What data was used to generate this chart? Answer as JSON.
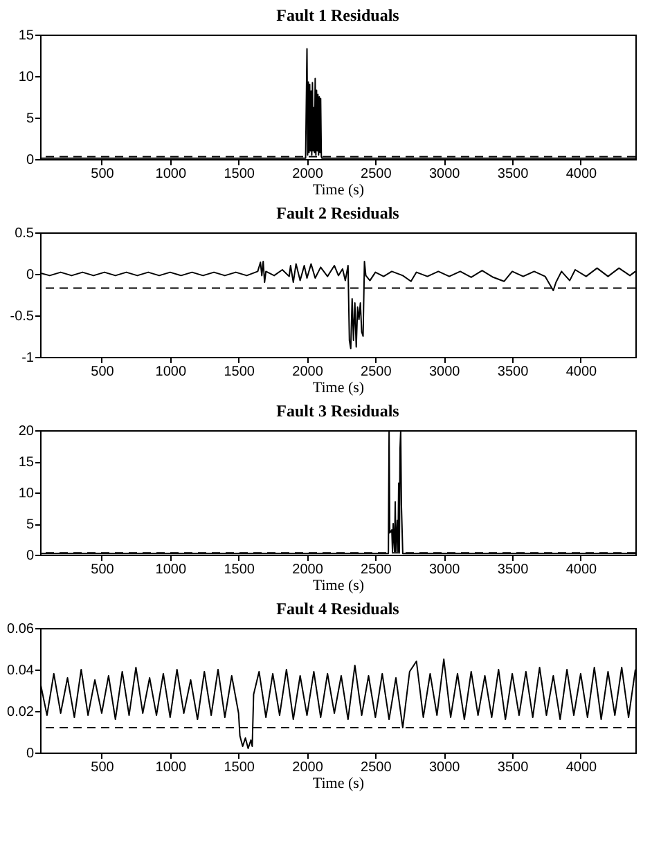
{
  "chart_data": [
    {
      "type": "line",
      "title": "Fault 1 Residuals",
      "xlabel": "Time (s)",
      "xlim": [
        50,
        4400
      ],
      "xticks": [
        500,
        1000,
        1500,
        2000,
        2500,
        3000,
        3500,
        4000
      ],
      "ylim": [
        0,
        15
      ],
      "yticks": [
        0,
        5,
        10,
        15
      ],
      "grid": false,
      "series": [
        {
          "color": "#000000",
          "x": [
            50,
            1000,
            1990,
            2000,
            2005,
            2010,
            2015,
            2020,
            2025,
            2030,
            2035,
            2040,
            2045,
            2050,
            2055,
            2060,
            2065,
            2070,
            2075,
            2080,
            2085,
            2090,
            2095,
            2100,
            2105,
            2110,
            3000,
            4400
          ],
          "values": [
            0.1,
            0.1,
            0.1,
            13.3,
            0.5,
            9.3,
            0.8,
            9.0,
            1,
            8.2,
            0.5,
            9.2,
            1,
            6.2,
            0.8,
            9.7,
            0.5,
            8.3,
            1,
            7.8,
            0.5,
            7.5,
            0.8,
            7.3,
            0.3,
            0.1,
            0.1,
            0.1
          ]
        }
      ],
      "ref_lines": [
        {
          "axis": "y",
          "value": 0.3,
          "color": "#000000",
          "line_style": "dashed"
        }
      ]
    },
    {
      "type": "line",
      "title": "Fault 2 Residuals",
      "xlabel": "Time (s)",
      "xlim": [
        50,
        4400
      ],
      "xticks": [
        500,
        1000,
        1500,
        2000,
        2500,
        3000,
        3500,
        4000
      ],
      "ylim": [
        -1,
        0.5
      ],
      "yticks": [
        -1,
        -0.5,
        0,
        0.5
      ],
      "grid": false,
      "series": [
        {
          "color": "#000000",
          "x": [
            50,
            120,
            200,
            280,
            360,
            440,
            520,
            600,
            680,
            760,
            840,
            920,
            1000,
            1080,
            1160,
            1240,
            1320,
            1400,
            1480,
            1560,
            1640,
            1660,
            1670,
            1680,
            1690,
            1700,
            1760,
            1820,
            1870,
            1880,
            1900,
            1920,
            1950,
            1980,
            2000,
            2030,
            2060,
            2100,
            2150,
            2200,
            2230,
            2260,
            2280,
            2300,
            2310,
            2320,
            2330,
            2340,
            2350,
            2360,
            2370,
            2380,
            2390,
            2400,
            2410,
            2420,
            2430,
            2460,
            2500,
            2560,
            2620,
            2700,
            2760,
            2800,
            2880,
            2960,
            3040,
            3120,
            3200,
            3280,
            3360,
            3440,
            3500,
            3580,
            3660,
            3740,
            3800,
            3820,
            3860,
            3920,
            3960,
            4040,
            4120,
            4200,
            4280,
            4360,
            4400
          ],
          "values": [
            0.01,
            -0.02,
            0.02,
            -0.02,
            0.02,
            -0.02,
            0.02,
            -0.02,
            0.02,
            -0.02,
            0.02,
            -0.02,
            0.02,
            -0.02,
            0.02,
            -0.02,
            0.02,
            -0.02,
            0.02,
            -0.02,
            0.03,
            0.14,
            -0.02,
            0.15,
            -0.1,
            0.03,
            -0.02,
            0.05,
            -0.03,
            0.1,
            -0.1,
            0.12,
            -0.08,
            0.1,
            -0.05,
            0.12,
            -0.05,
            0.08,
            -0.03,
            0.1,
            -0.02,
            0.06,
            -0.08,
            0.1,
            -0.8,
            -0.9,
            -0.3,
            -0.8,
            -0.35,
            -0.88,
            -0.4,
            -0.55,
            -0.35,
            -0.7,
            -0.75,
            0.15,
            -0.02,
            -0.08,
            0.02,
            -0.03,
            0.03,
            -0.02,
            -0.09,
            0.02,
            -0.03,
            0.03,
            -0.03,
            0.03,
            -0.04,
            0.04,
            -0.04,
            -0.09,
            0.03,
            -0.03,
            0.03,
            -0.03,
            -0.2,
            -0.1,
            0.03,
            -0.08,
            0.05,
            -0.03,
            0.07,
            -0.03,
            0.07,
            -0.02,
            0.03
          ]
        }
      ],
      "ref_lines": [
        {
          "axis": "y",
          "value": -0.17,
          "color": "#000000",
          "line_style": "dashed"
        }
      ]
    },
    {
      "type": "line",
      "title": "Fault 3 Residuals",
      "xlabel": "Time (s)",
      "xlim": [
        50,
        4400
      ],
      "xticks": [
        500,
        1000,
        1500,
        2000,
        2500,
        3000,
        3500,
        4000
      ],
      "ylim": [
        0,
        20
      ],
      "yticks": [
        0,
        5,
        10,
        15,
        20
      ],
      "grid": false,
      "series": [
        {
          "color": "#000000",
          "x": [
            50,
            1000,
            2000,
            2595,
            2600,
            2605,
            2620,
            2625,
            2630,
            2640,
            2645,
            2650,
            2660,
            2665,
            2670,
            2675,
            2680,
            2685,
            2690,
            2700,
            3500,
            4400
          ],
          "values": [
            0.2,
            0.2,
            0.2,
            0.2,
            20,
            3.5,
            4,
            0.5,
            5,
            0.5,
            8.5,
            0.5,
            5.5,
            0.5,
            11.5,
            0.5,
            17,
            20,
            8,
            0.2,
            0.2,
            0.2
          ]
        }
      ],
      "ref_lines": [
        {
          "axis": "y",
          "value": 0.3,
          "color": "#000000",
          "line_style": "dashed"
        }
      ]
    },
    {
      "type": "line",
      "title": "Fault 4 Residuals",
      "xlabel": "Time (s)",
      "xlim": [
        50,
        4400
      ],
      "xticks": [
        500,
        1000,
        1500,
        2000,
        2500,
        3000,
        3500,
        4000
      ],
      "ylim": [
        0,
        0.06
      ],
      "yticks": [
        0,
        0.02,
        0.04,
        0.06
      ],
      "grid": false,
      "series": [
        {
          "color": "#000000",
          "x": [
            50,
            100,
            150,
            200,
            250,
            300,
            350,
            400,
            450,
            500,
            550,
            600,
            650,
            700,
            750,
            800,
            850,
            900,
            950,
            1000,
            1050,
            1100,
            1150,
            1200,
            1250,
            1300,
            1350,
            1400,
            1450,
            1500,
            1510,
            1530,
            1550,
            1570,
            1590,
            1600,
            1610,
            1650,
            1700,
            1750,
            1800,
            1850,
            1900,
            1950,
            2000,
            2050,
            2100,
            2150,
            2200,
            2250,
            2300,
            2350,
            2400,
            2450,
            2500,
            2550,
            2600,
            2650,
            2700,
            2750,
            2800,
            2850,
            2900,
            2950,
            3000,
            3050,
            3100,
            3150,
            3200,
            3250,
            3300,
            3350,
            3400,
            3450,
            3500,
            3550,
            3600,
            3650,
            3700,
            3750,
            3800,
            3850,
            3900,
            3950,
            4000,
            4050,
            4100,
            4150,
            4200,
            4250,
            4300,
            4350,
            4400
          ],
          "values": [
            0.034,
            0.018,
            0.038,
            0.019,
            0.036,
            0.017,
            0.04,
            0.018,
            0.035,
            0.019,
            0.037,
            0.016,
            0.039,
            0.018,
            0.041,
            0.019,
            0.036,
            0.018,
            0.038,
            0.017,
            0.04,
            0.019,
            0.035,
            0.016,
            0.039,
            0.018,
            0.04,
            0.017,
            0.037,
            0.019,
            0.008,
            0.003,
            0.007,
            0.002,
            0.006,
            0.003,
            0.028,
            0.039,
            0.017,
            0.038,
            0.018,
            0.04,
            0.016,
            0.037,
            0.018,
            0.039,
            0.017,
            0.038,
            0.019,
            0.037,
            0.016,
            0.042,
            0.018,
            0.037,
            0.017,
            0.038,
            0.016,
            0.036,
            0.012,
            0.039,
            0.044,
            0.017,
            0.038,
            0.018,
            0.045,
            0.017,
            0.038,
            0.016,
            0.039,
            0.018,
            0.037,
            0.017,
            0.04,
            0.016,
            0.038,
            0.018,
            0.039,
            0.017,
            0.041,
            0.018,
            0.037,
            0.016,
            0.04,
            0.018,
            0.038,
            0.017,
            0.041,
            0.016,
            0.039,
            0.018,
            0.041,
            0.017,
            0.04
          ]
        }
      ],
      "ref_lines": [
        {
          "axis": "y",
          "value": 0.012,
          "color": "#000000",
          "line_style": "dashed"
        }
      ]
    }
  ]
}
